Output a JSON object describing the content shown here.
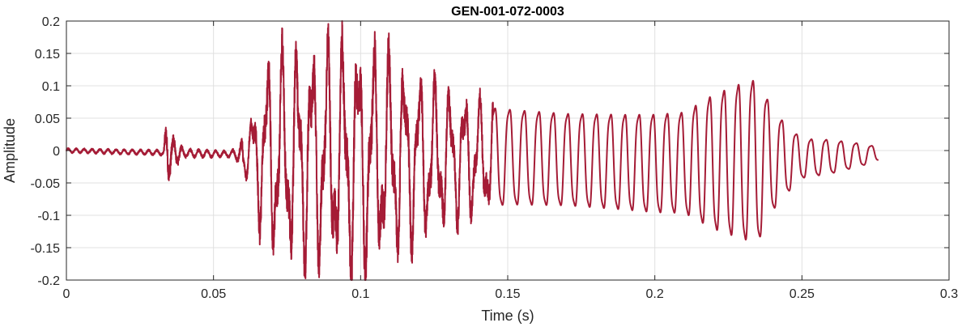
{
  "chart_data": {
    "type": "line",
    "title": "GEN-001-072-0003",
    "xlabel": "Time (s)",
    "ylabel": "Amplitude",
    "xlim": [
      0,
      0.3
    ],
    "ylim": [
      -0.2,
      0.2
    ],
    "xticks": [
      0,
      0.05,
      0.1,
      0.15,
      0.2,
      0.25,
      0.3
    ],
    "xtick_labels": [
      "0",
      "0.05",
      "0.1",
      "0.15",
      "0.2",
      "0.25",
      "0.3"
    ],
    "yticks": [
      -0.2,
      -0.15,
      -0.1,
      -0.05,
      0,
      0.05,
      0.1,
      0.15,
      0.2
    ],
    "ytick_labels": [
      "-0.2",
      "-0.15",
      "-0.1",
      "-0.05",
      "0",
      "0.05",
      "0.1",
      "0.15",
      "0.2"
    ],
    "grid": true,
    "series": [
      {
        "color": "#a51c36",
        "envelope": [
          [
            0.0,
            0.004
          ],
          [
            0.033,
            0.005
          ],
          [
            0.034,
            0.06
          ],
          [
            0.036,
            0.03
          ],
          [
            0.04,
            0.008
          ],
          [
            0.055,
            0.006
          ],
          [
            0.058,
            0.012
          ],
          [
            0.062,
            0.045
          ],
          [
            0.066,
            0.12
          ],
          [
            0.07,
            0.16
          ],
          [
            0.08,
            0.17
          ],
          [
            0.09,
            0.18
          ],
          [
            0.1,
            0.185
          ],
          [
            0.11,
            0.16
          ],
          [
            0.12,
            0.13
          ],
          [
            0.13,
            0.11
          ],
          [
            0.14,
            0.09
          ],
          [
            0.15,
            0.085
          ],
          [
            0.17,
            0.082
          ],
          [
            0.19,
            0.085
          ],
          [
            0.21,
            0.09
          ],
          [
            0.22,
            0.12
          ],
          [
            0.23,
            0.14
          ],
          [
            0.235,
            0.145
          ],
          [
            0.24,
            0.09
          ],
          [
            0.245,
            0.06
          ],
          [
            0.25,
            0.035
          ],
          [
            0.26,
            0.03
          ],
          [
            0.27,
            0.02
          ],
          [
            0.276,
            0.012
          ]
        ],
        "frequency_hz": [
          [
            0.0,
            220
          ],
          [
            0.06,
            200
          ],
          [
            0.1,
            190
          ],
          [
            0.15,
            200
          ],
          [
            0.2,
            210
          ],
          [
            0.25,
            200
          ],
          [
            0.276,
            190
          ]
        ],
        "dc_offset": [
          [
            0.0,
            0.0
          ],
          [
            0.1,
            -0.01
          ],
          [
            0.15,
            -0.01
          ],
          [
            0.2,
            -0.02
          ],
          [
            0.24,
            -0.015
          ],
          [
            0.276,
            -0.005
          ]
        ]
      }
    ]
  }
}
